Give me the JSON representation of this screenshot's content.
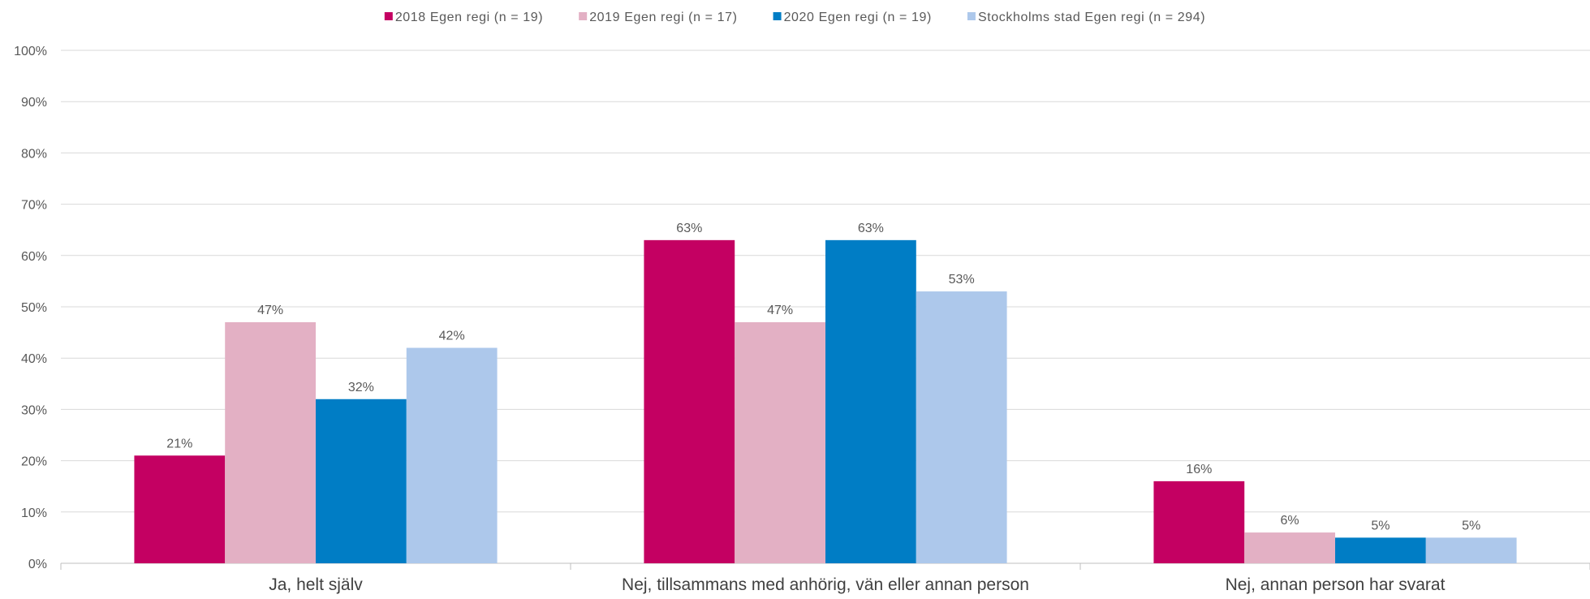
{
  "chart_data": {
    "type": "bar",
    "title": "",
    "xlabel": "",
    "ylabel": "",
    "ylim": [
      0,
      100
    ],
    "y_ticks": [
      0,
      10,
      20,
      30,
      40,
      50,
      60,
      70,
      80,
      90,
      100
    ],
    "y_tick_format": "{v}%",
    "grid": true,
    "legend_position": "top",
    "categories": [
      "Ja, helt själv",
      "Nej, tillsammans med anhörig, vän eller annan person",
      "Nej, annan person har svarat"
    ],
    "series": [
      {
        "name": "2018  Egen regi (n = 19)",
        "color": "#C40062",
        "values": [
          21,
          63,
          16
        ],
        "labels": [
          "21%",
          "63%",
          "16%"
        ]
      },
      {
        "name": "2019  Egen regi (n = 17)",
        "color": "#E3B0C4",
        "values": [
          47,
          47,
          6
        ],
        "labels": [
          "47%",
          "47%",
          "6%"
        ]
      },
      {
        "name": "2020  Egen regi (n = 19)",
        "color": "#007DC5",
        "values": [
          32,
          63,
          5
        ],
        "labels": [
          "32%",
          "63%",
          "5%"
        ]
      },
      {
        "name": "Stockholms stad  Egen regi (n = 294)",
        "color": "#ADC8EB",
        "values": [
          42,
          53,
          5
        ],
        "labels": [
          "42%",
          "53%",
          "5%"
        ]
      }
    ]
  },
  "colors": {
    "grid": "#D9D9D9",
    "axis": "#BFBFBF",
    "text": "#595959"
  }
}
